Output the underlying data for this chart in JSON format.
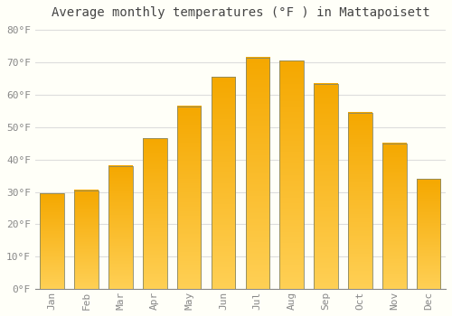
{
  "title": "Average monthly temperatures (°F ) in Mattapoisett",
  "months": [
    "Jan",
    "Feb",
    "Mar",
    "Apr",
    "May",
    "Jun",
    "Jul",
    "Aug",
    "Sep",
    "Oct",
    "Nov",
    "Dec"
  ],
  "values": [
    29.5,
    30.5,
    38.0,
    46.5,
    56.5,
    65.5,
    71.5,
    70.5,
    63.5,
    54.5,
    45.0,
    34.0
  ],
  "bar_color_top": "#F5A800",
  "bar_color_bottom": "#FFD055",
  "bar_edge_color": "#888866",
  "background_color": "#FFFFF8",
  "grid_color": "#DDDDDD",
  "ylim": [
    0,
    82
  ],
  "yticks": [
    0,
    10,
    20,
    30,
    40,
    50,
    60,
    70,
    80
  ],
  "ytick_labels": [
    "0°F",
    "10°F",
    "20°F",
    "30°F",
    "40°F",
    "50°F",
    "60°F",
    "70°F",
    "80°F"
  ],
  "title_fontsize": 10,
  "tick_fontsize": 8,
  "title_color": "#444444",
  "tick_color": "#888888",
  "font_family": "monospace",
  "bar_width": 0.7
}
